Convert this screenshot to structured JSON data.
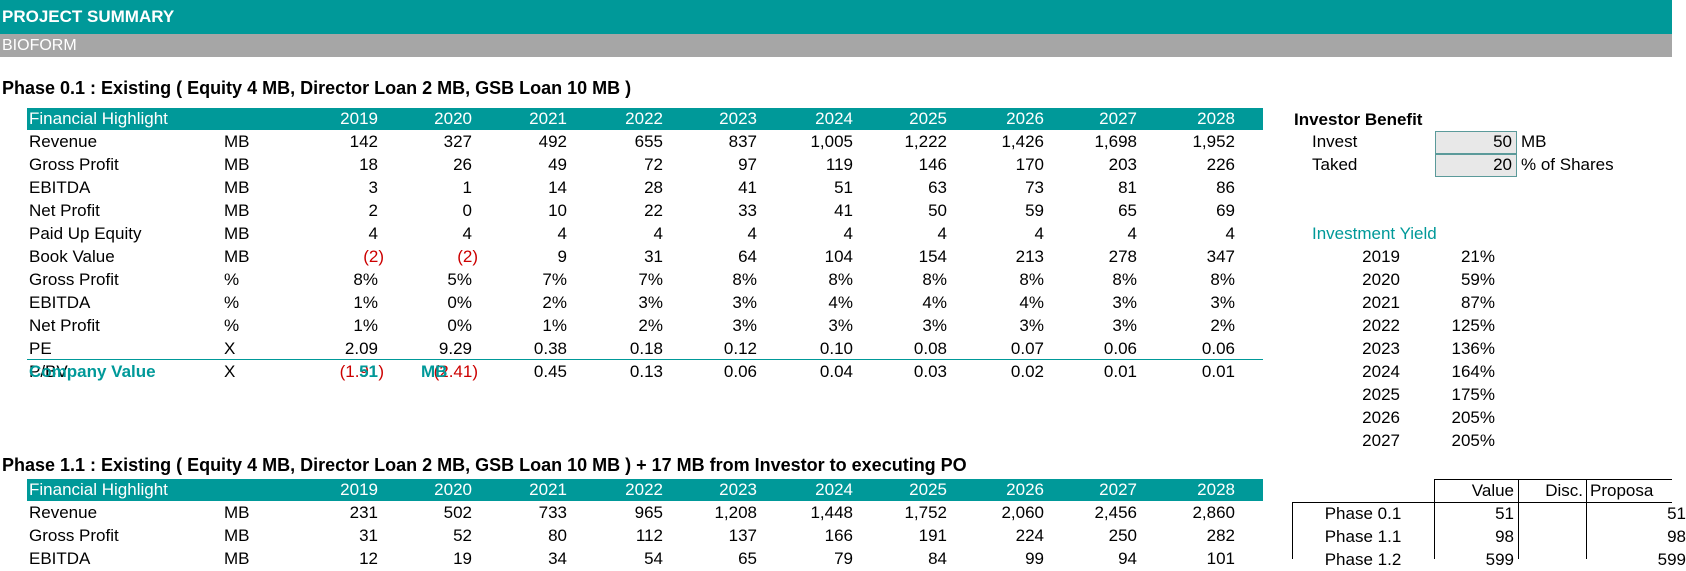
{
  "header": {
    "title": "PROJECT SUMMARY",
    "subtitle": "BIOFORM"
  },
  "phase1": {
    "title": "Phase 0.1 : Existing ( Equity 4 MB, Director Loan 2 MB, GSB Loan 10 MB )",
    "header_label": "Financial Highlight",
    "years": [
      "2019",
      "2020",
      "2021",
      "2022",
      "2023",
      "2024",
      "2025",
      "2026",
      "2027",
      "2028"
    ],
    "rows": [
      {
        "label": "Revenue",
        "unit": "MB",
        "values": [
          "142",
          "327",
          "492",
          "655",
          "837",
          "1,005",
          "1,222",
          "1,426",
          "1,698",
          "1,952"
        ]
      },
      {
        "label": "Gross Profit",
        "unit": "MB",
        "values": [
          "18",
          "26",
          "49",
          "72",
          "97",
          "119",
          "146",
          "170",
          "203",
          "226"
        ]
      },
      {
        "label": "EBITDA",
        "unit": "MB",
        "values": [
          "3",
          "1",
          "14",
          "28",
          "41",
          "51",
          "63",
          "73",
          "81",
          "86"
        ]
      },
      {
        "label": "Net Profit",
        "unit": "MB",
        "values": [
          "2",
          "0",
          "10",
          "22",
          "33",
          "41",
          "50",
          "59",
          "65",
          "69"
        ]
      },
      {
        "label": "Paid Up Equity",
        "unit": "MB",
        "values": [
          "4",
          "4",
          "4",
          "4",
          "4",
          "4",
          "4",
          "4",
          "4",
          "4"
        ]
      },
      {
        "label": "Book Value",
        "unit": "MB",
        "values": [
          "(2)",
          "(2)",
          "9",
          "31",
          "64",
          "104",
          "154",
          "213",
          "278",
          "347"
        ]
      },
      {
        "label": "Gross Profit",
        "unit": "%",
        "values": [
          "8%",
          "5%",
          "7%",
          "7%",
          "8%",
          "8%",
          "8%",
          "8%",
          "8%",
          "8%"
        ]
      },
      {
        "label": "EBITDA",
        "unit": "%",
        "values": [
          "1%",
          "0%",
          "2%",
          "3%",
          "3%",
          "4%",
          "4%",
          "4%",
          "3%",
          "3%"
        ]
      },
      {
        "label": "Net Profit",
        "unit": "%",
        "values": [
          "1%",
          "0%",
          "1%",
          "2%",
          "3%",
          "3%",
          "3%",
          "3%",
          "3%",
          "2%"
        ]
      },
      {
        "label": "PE",
        "unit": "X",
        "values": [
          "2.09",
          "9.29",
          "0.38",
          "0.18",
          "0.12",
          "0.10",
          "0.08",
          "0.07",
          "0.06",
          "0.06"
        ]
      },
      {
        "label": "P/BV",
        "unit": "X",
        "values": [
          "(1.91)",
          "(2.41)",
          "0.45",
          "0.13",
          "0.06",
          "0.04",
          "0.03",
          "0.02",
          "0.01",
          "0.01"
        ]
      }
    ],
    "company_value": {
      "label": "Company Value",
      "value": "51",
      "unit": "MB"
    }
  },
  "phase2": {
    "title": "Phase 1.1 : Existing ( Equity 4 MB, Director Loan 2 MB, GSB Loan 10 MB ) + 17 MB from Investor to executing PO",
    "header_label": "Financial Highlight",
    "years": [
      "2019",
      "2020",
      "2021",
      "2022",
      "2023",
      "2024",
      "2025",
      "2026",
      "2027",
      "2028"
    ],
    "rows": [
      {
        "label": "Revenue",
        "unit": "MB",
        "values": [
          "231",
          "502",
          "733",
          "965",
          "1,208",
          "1,448",
          "1,752",
          "2,060",
          "2,456",
          "2,860"
        ]
      },
      {
        "label": "Gross Profit",
        "unit": "MB",
        "values": [
          "31",
          "52",
          "80",
          "112",
          "137",
          "166",
          "191",
          "224",
          "250",
          "282"
        ]
      },
      {
        "label": "EBITDA",
        "unit": "MB",
        "values": [
          "12",
          "19",
          "34",
          "54",
          "65",
          "79",
          "84",
          "99",
          "94",
          "101"
        ]
      }
    ]
  },
  "investor": {
    "title": "Investor Benefit",
    "invest": {
      "label": "Invest",
      "value": "50",
      "unit": "MB"
    },
    "taked": {
      "label": "Taked",
      "value": "20",
      "unit": "% of Shares"
    },
    "yield_title": "Investment Yield",
    "yields": [
      {
        "year": "2019",
        "value": "21%"
      },
      {
        "year": "2020",
        "value": "59%"
      },
      {
        "year": "2021",
        "value": "87%"
      },
      {
        "year": "2022",
        "value": "125%"
      },
      {
        "year": "2023",
        "value": "136%"
      },
      {
        "year": "2024",
        "value": "164%"
      },
      {
        "year": "2025",
        "value": "175%"
      },
      {
        "year": "2026",
        "value": "205%"
      },
      {
        "year": "2027",
        "value": "205%"
      }
    ]
  },
  "value_table": {
    "headers": [
      "Value",
      "Disc.",
      "Proposa"
    ],
    "rows": [
      {
        "label": "Phase 0.1",
        "value": "51",
        "proposal": "51"
      },
      {
        "label": "Phase 1.1",
        "value": "98",
        "proposal": "98"
      },
      {
        "label": "Phase 1.2",
        "value": "599",
        "proposal": "599"
      }
    ]
  },
  "colors": {
    "accent": "#009999",
    "header_gray": "#a6a6a6",
    "negative": "#cc0000"
  }
}
